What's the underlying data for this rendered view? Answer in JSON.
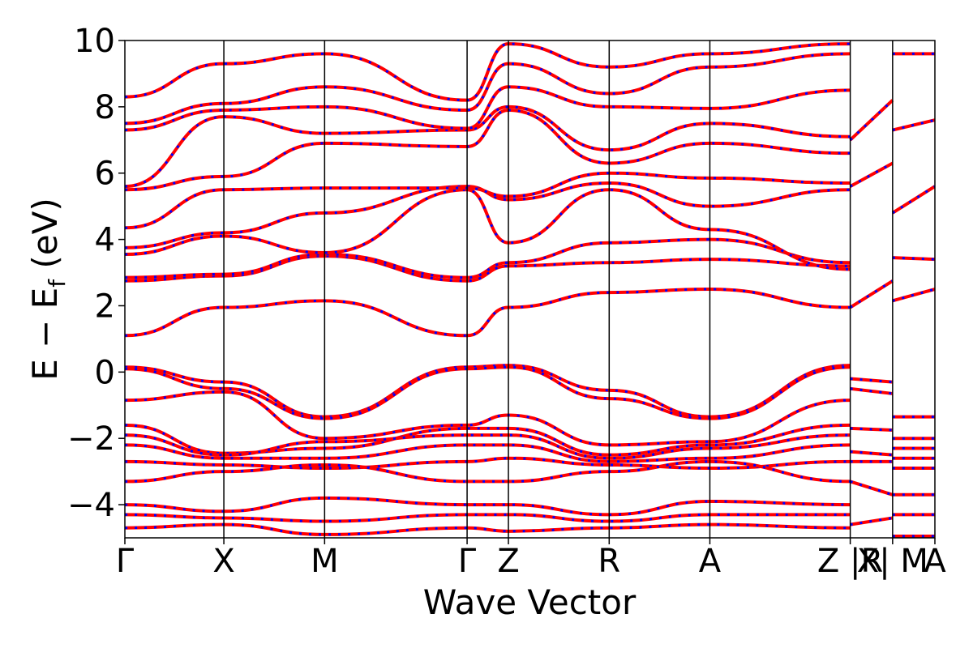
{
  "chart_data": {
    "type": "line",
    "title": "",
    "xlabel": "Wave Vector",
    "ylabel": "E − E",
    "ylabel_subscript": "f",
    "ylabel_unit": " (eV)",
    "ylim": [
      -5,
      10
    ],
    "xlim": [
      0,
      1.0
    ],
    "yticks": [
      -4,
      -2,
      0,
      2,
      4,
      6,
      8,
      10
    ],
    "ytick_labels": [
      "−4",
      "−2",
      "0",
      "2",
      "4",
      "6",
      "8",
      "10"
    ],
    "xticks": [
      {
        "label": "Γ",
        "x": 0.0
      },
      {
        "label": "X",
        "x": 0.1222
      },
      {
        "label": "M",
        "x": 0.2466
      },
      {
        "label": "Γ",
        "x": 0.4225
      },
      {
        "label": "Z",
        "x": 0.4735
      },
      {
        "label": "R",
        "x": 0.5979
      },
      {
        "label": "A",
        "x": 0.7222
      },
      {
        "label": "Z |R",
        "x": 0.8955
      },
      {
        "label": "X| M",
        "x": 0.9478
      },
      {
        "label": "A",
        "x": 1.0
      }
    ],
    "segment_breaks": [
      0.8955,
      0.9478
    ],
    "grid": false,
    "series": [
      {
        "color_line": "#ff0000",
        "color_dash": "#0000ff",
        "bands": [
          {
            "x": [
              0,
              0.1222,
              0.2466,
              0.4225,
              0.4735,
              0.5979,
              0.7222,
              0.8955
            ],
            "y": [
              1.1,
              1.95,
              2.15,
              1.1,
              1.95,
              2.4,
              2.5,
              1.95
            ]
          },
          {
            "x": [
              0.8955,
              0.9478
            ],
            "y": [
              1.95,
              2.75
            ]
          },
          {
            "x": [
              0.9478,
              1.0
            ],
            "y": [
              2.15,
              2.5
            ]
          },
          {
            "x": [
              0,
              0.1222,
              0.2466,
              0.4225,
              0.4735,
              0.5979,
              0.7222,
              0.8955
            ],
            "y": [
              2.75,
              2.9,
              3.5,
              2.75,
              3.2,
              3.3,
              3.4,
              3.2
            ]
          },
          {
            "x": [
              0,
              0.1222,
              0.2466,
              0.4225,
              0.4735,
              0.5979,
              0.7222,
              0.8955
            ],
            "y": [
              2.85,
              2.95,
              3.55,
              2.85,
              3.3,
              3.9,
              4.0,
              3.3
            ]
          },
          {
            "x": [
              0,
              0.1222,
              0.2466,
              0.4225,
              0.4735,
              0.5979,
              0.7222,
              0.8955
            ],
            "y": [
              3.55,
              4.1,
              3.6,
              5.5,
              3.9,
              5.5,
              4.3,
              3.1
            ]
          },
          {
            "x": [
              0,
              0.1222,
              0.2466,
              0.4225,
              0.4735,
              0.5979,
              0.7222,
              0.8955
            ],
            "y": [
              3.75,
              4.2,
              4.8,
              5.6,
              5.2,
              5.7,
              5.0,
              5.5
            ]
          },
          {
            "x": [
              0,
              0.1222,
              0.2466,
              0.4225,
              0.4735,
              0.5979,
              0.7222,
              0.8955
            ],
            "y": [
              4.35,
              5.5,
              5.55,
              5.55,
              5.3,
              6.0,
              5.85,
              5.7
            ]
          },
          {
            "x": [
              0,
              0.1222,
              0.2466,
              0.4225,
              0.4735,
              0.5979,
              0.7222,
              0.8955
            ],
            "y": [
              5.5,
              5.9,
              6.9,
              6.8,
              7.9,
              6.3,
              6.9,
              6.6
            ]
          },
          {
            "x": [
              0,
              0.1222,
              0.2466,
              0.4225,
              0.4735,
              0.5979,
              0.7222,
              0.8955
            ],
            "y": [
              5.6,
              7.7,
              7.2,
              7.3,
              8.0,
              6.7,
              7.5,
              7.1
            ]
          },
          {
            "x": [
              0,
              0.1222,
              0.2466,
              0.4225,
              0.4735,
              0.5979,
              0.7222,
              0.8955
            ],
            "y": [
              7.3,
              7.9,
              8.0,
              7.35,
              8.6,
              8.0,
              7.95,
              8.5
            ]
          },
          {
            "x": [
              0,
              0.1222,
              0.2466,
              0.4225,
              0.4735,
              0.5979,
              0.7222,
              0.8955
            ],
            "y": [
              7.5,
              8.1,
              8.6,
              7.9,
              9.3,
              8.4,
              9.2,
              9.6
            ]
          },
          {
            "x": [
              0,
              0.1222,
              0.2466,
              0.4225,
              0.4735,
              0.5979,
              0.7222,
              0.8955
            ],
            "y": [
              8.3,
              9.3,
              9.6,
              8.2,
              9.9,
              9.2,
              9.6,
              9.9
            ]
          },
          {
            "x": [
              0.8955,
              0.9478
            ],
            "y": [
              5.6,
              6.3
            ]
          },
          {
            "x": [
              0.8955,
              0.9478
            ],
            "y": [
              7.0,
              8.2
            ]
          },
          {
            "x": [
              0.9478,
              1.0
            ],
            "y": [
              3.45,
              3.4
            ]
          },
          {
            "x": [
              0.9478,
              1.0
            ],
            "y": [
              4.8,
              5.6
            ]
          },
          {
            "x": [
              0.9478,
              1.0
            ],
            "y": [
              7.3,
              7.6
            ]
          },
          {
            "x": [
              0.9478,
              1.0
            ],
            "y": [
              9.6,
              9.6
            ]
          },
          {
            "x": [
              0,
              0.1222,
              0.2466,
              0.4225,
              0.4735,
              0.5979,
              0.7222,
              0.8955
            ],
            "y": [
              0.15,
              -0.3,
              -1.35,
              0.15,
              0.2,
              -0.55,
              -1.35,
              0.2
            ]
          },
          {
            "x": [
              0,
              0.1222,
              0.2466,
              0.4225,
              0.4735,
              0.5979,
              0.7222,
              0.8955
            ],
            "y": [
              0.1,
              -0.5,
              -1.4,
              0.1,
              0.15,
              -0.8,
              -1.4,
              0.15
            ]
          },
          {
            "x": [
              0,
              0.1222,
              0.2466,
              0.4225,
              0.4735,
              0.5979,
              0.7222,
              0.8955
            ],
            "y": [
              -0.85,
              -0.6,
              -2.0,
              -1.6,
              -1.3,
              -2.2,
              -2.1,
              -0.85
            ]
          },
          {
            "x": [
              0,
              0.1222,
              0.2466,
              0.4225,
              0.4735,
              0.5979,
              0.7222,
              0.8955
            ],
            "y": [
              -1.6,
              -2.45,
              -2.3,
              -1.7,
              -1.7,
              -2.5,
              -2.2,
              -1.6
            ]
          },
          {
            "x": [
              0,
              0.1222,
              0.2466,
              0.4225,
              0.4735,
              0.5979,
              0.7222,
              0.8955
            ],
            "y": [
              -1.9,
              -2.5,
              -2.1,
              -1.9,
              -1.9,
              -2.6,
              -2.3,
              -1.9
            ]
          },
          {
            "x": [
              0,
              0.1222,
              0.2466,
              0.4225,
              0.4735,
              0.5979,
              0.7222,
              0.8955
            ],
            "y": [
              -2.2,
              -2.6,
              -2.6,
              -2.2,
              -2.2,
              -2.7,
              -2.6,
              -2.2
            ]
          },
          {
            "x": [
              0,
              0.1222,
              0.2466,
              0.4225,
              0.4735,
              0.5979,
              0.7222,
              0.8955
            ],
            "y": [
              -2.7,
              -2.8,
              -2.9,
              -2.7,
              -2.6,
              -2.8,
              -2.9,
              -2.7
            ]
          },
          {
            "x": [
              0,
              0.1222,
              0.2466,
              0.4225,
              0.4735,
              0.5979,
              0.7222,
              0.8955
            ],
            "y": [
              -3.3,
              -3.0,
              -2.8,
              -3.3,
              -3.3,
              -3.0,
              -2.7,
              -3.3
            ]
          },
          {
            "x": [
              0,
              0.1222,
              0.2466,
              0.4225,
              0.4735,
              0.5979,
              0.7222,
              0.8955
            ],
            "y": [
              -4.0,
              -4.2,
              -3.8,
              -4.0,
              -4.0,
              -4.3,
              -3.9,
              -4.0
            ]
          },
          {
            "x": [
              0,
              0.1222,
              0.2466,
              0.4225,
              0.4735,
              0.5979,
              0.7222,
              0.8955
            ],
            "y": [
              -4.3,
              -4.4,
              -4.5,
              -4.3,
              -4.3,
              -4.5,
              -4.3,
              -4.3
            ]
          },
          {
            "x": [
              0,
              0.1222,
              0.2466,
              0.4225,
              0.4735,
              0.5979,
              0.7222,
              0.8955
            ],
            "y": [
              -4.7,
              -4.6,
              -4.9,
              -4.7,
              -4.8,
              -4.7,
              -4.6,
              -4.7
            ]
          },
          {
            "x": [
              0.8955,
              0.9478
            ],
            "y": [
              -0.2,
              -0.3
            ]
          },
          {
            "x": [
              0.8955,
              0.9478
            ],
            "y": [
              -0.5,
              -0.65
            ]
          },
          {
            "x": [
              0.8955,
              0.9478
            ],
            "y": [
              -1.7,
              -1.75
            ]
          },
          {
            "x": [
              0.8955,
              0.9478
            ],
            "y": [
              -2.4,
              -2.5
            ]
          },
          {
            "x": [
              0.8955,
              0.9478
            ],
            "y": [
              -2.7,
              -2.7
            ]
          },
          {
            "x": [
              0.8955,
              0.9478
            ],
            "y": [
              -3.3,
              -3.7
            ]
          },
          {
            "x": [
              0.8955,
              0.9478
            ],
            "y": [
              -4.6,
              -4.4
            ]
          },
          {
            "x": [
              0.9478,
              1.0
            ],
            "y": [
              -1.35,
              -1.35
            ]
          },
          {
            "x": [
              0.9478,
              1.0
            ],
            "y": [
              -2.0,
              -2.0
            ]
          },
          {
            "x": [
              0.9478,
              1.0
            ],
            "y": [
              -2.3,
              -2.3
            ]
          },
          {
            "x": [
              0.9478,
              1.0
            ],
            "y": [
              -2.6,
              -2.6
            ]
          },
          {
            "x": [
              0.9478,
              1.0
            ],
            "y": [
              -2.9,
              -2.9
            ]
          },
          {
            "x": [
              0.9478,
              1.0
            ],
            "y": [
              -3.7,
              -3.7
            ]
          },
          {
            "x": [
              0.9478,
              1.0
            ],
            "y": [
              -4.3,
              -4.3
            ]
          },
          {
            "x": [
              0.9478,
              1.0
            ],
            "y": [
              -4.95,
              -4.95
            ]
          }
        ]
      }
    ]
  }
}
